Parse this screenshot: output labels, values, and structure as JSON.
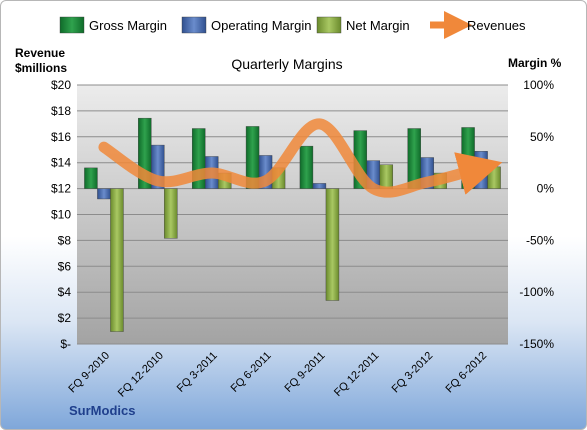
{
  "chart_data": {
    "type": "bar",
    "title": "Quarterly Margins",
    "left_axis": {
      "label_line1": "Revenue",
      "label_line2": "$millions",
      "ticks": [
        "$20",
        "$18",
        "$16",
        "$14",
        "$12",
        "$10",
        "$8",
        "$6",
        "$4",
        "$2",
        "$-"
      ],
      "range": [
        0,
        20
      ]
    },
    "right_axis": {
      "label": "Margin %",
      "ticks": [
        "100%",
        "50%",
        "0%",
        "-50%",
        "-100%",
        "-150%"
      ],
      "range": [
        -150,
        100
      ]
    },
    "categories": [
      "FQ 9-2010",
      "FQ 12-2010",
      "FQ 3-2011",
      "FQ 6-2011",
      "FQ 9-2011",
      "FQ 12-2011",
      "FQ 3-2012",
      "FQ 6-2012"
    ],
    "series": [
      {
        "name": "Gross Margin",
        "axis": "right",
        "color": "#1f8a3c",
        "values": [
          20,
          68,
          58,
          60,
          41,
          56,
          58,
          59
        ]
      },
      {
        "name": "Operating Margin",
        "axis": "right",
        "color": "#4d6fb3",
        "values": [
          -10,
          42,
          31,
          32,
          5,
          27,
          30,
          36
        ]
      },
      {
        "name": "Net Margin",
        "axis": "right",
        "color": "#8fac45",
        "values": [
          -138,
          -48,
          15,
          20,
          -108,
          23,
          15,
          21
        ]
      },
      {
        "name": "Revenues",
        "axis": "left",
        "color": "#f0883a",
        "values": [
          15.2,
          12.6,
          13.2,
          12.6,
          17.0,
          12.0,
          12.5,
          13.6
        ]
      }
    ],
    "grid": true,
    "legend": "top"
  },
  "footer": {
    "brand": "SurModics"
  }
}
